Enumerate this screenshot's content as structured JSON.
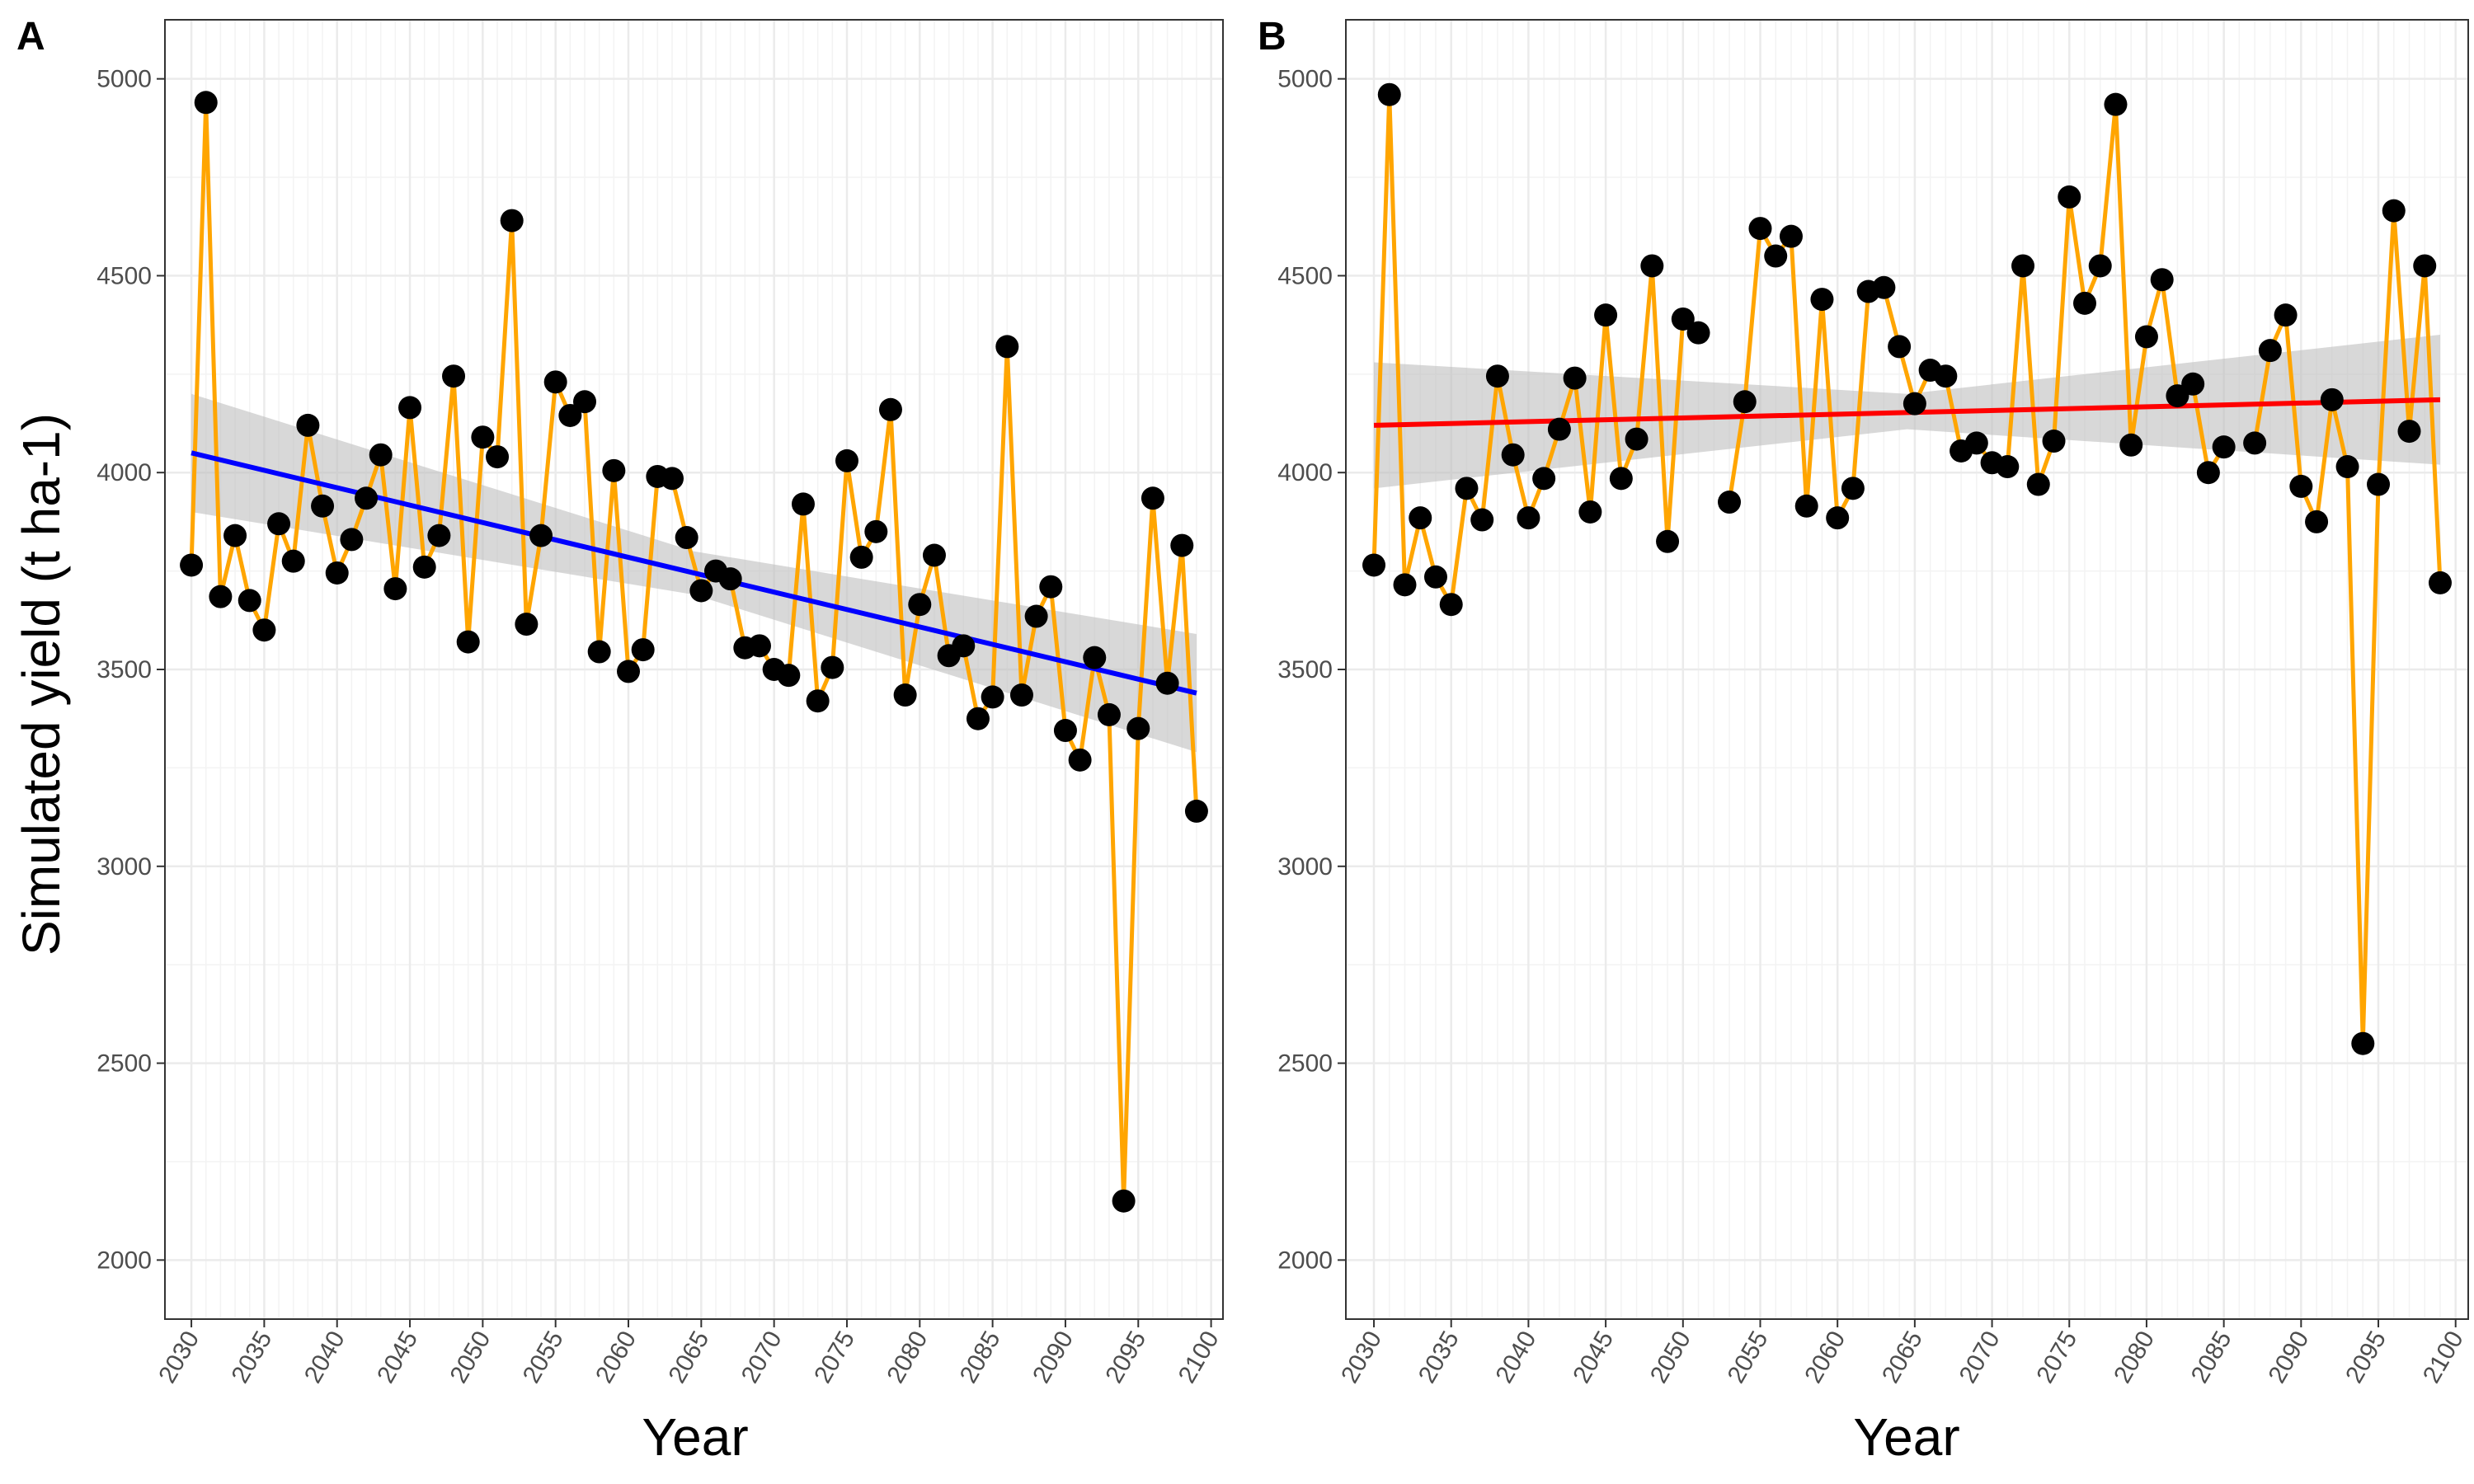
{
  "colors": {
    "series_line": "#FFA500",
    "points": "#000000",
    "trend_A": "#0000FF",
    "trend_B": "#FF0000",
    "ribbon": "#BEBEBE",
    "grid_major": "#EBEBEB",
    "grid_minor": "#F3F3F3",
    "panel_border": "#333333"
  },
  "shared": {
    "ylabel": "Simulated yield (t ha-1)",
    "xlabel": "Year"
  },
  "chart_data": [
    {
      "type": "line",
      "panel_label": "A",
      "xlabel": "Year",
      "ylabel": "Simulated yield (t ha-1)",
      "xlim": [
        2030,
        2099
      ],
      "ylim": [
        1850,
        5150
      ],
      "x_ticks": [
        2030,
        2035,
        2040,
        2045,
        2050,
        2055,
        2060,
        2065,
        2070,
        2075,
        2080,
        2085,
        2090,
        2095,
        2100
      ],
      "y_ticks": [
        2000,
        2500,
        3000,
        3500,
        4000,
        4500,
        5000
      ],
      "grid": true,
      "x": [
        2030,
        2031,
        2032,
        2033,
        2034,
        2035,
        2036,
        2037,
        2038,
        2039,
        2040,
        2041,
        2042,
        2043,
        2044,
        2045,
        2046,
        2047,
        2048,
        2049,
        2050,
        2051,
        2052,
        2053,
        2054,
        2055,
        2056,
        2057,
        2058,
        2059,
        2060,
        2061,
        2062,
        2063,
        2064,
        2065,
        2066,
        2067,
        2068,
        2069,
        2070,
        2071,
        2072,
        2073,
        2074,
        2075,
        2076,
        2077,
        2078,
        2079,
        2080,
        2081,
        2082,
        2083,
        2084,
        2085,
        2086,
        2087,
        2088,
        2089,
        2090,
        2091,
        2092,
        2093,
        2094,
        2095,
        2096,
        2097,
        2098,
        2099
      ],
      "y": [
        3765,
        4940,
        3685,
        3840,
        3675,
        3600,
        3870,
        3775,
        4120,
        3915,
        3745,
        3830,
        3935,
        4045,
        3705,
        4165,
        3760,
        3840,
        4245,
        3570,
        4090,
        4040,
        4640,
        3615,
        3840,
        4230,
        4145,
        4180,
        3545,
        4005,
        3495,
        3550,
        3990,
        3985,
        3835,
        3700,
        3750,
        3730,
        3555,
        3560,
        3500,
        3485,
        3920,
        3420,
        3505,
        4030,
        3785,
        3850,
        4160,
        3435,
        3665,
        3790,
        3535,
        3560,
        3375,
        3430,
        4320,
        3435,
        3635,
        3710,
        3345,
        3270,
        3530,
        3385,
        2150,
        3350,
        3935,
        3465,
        3815,
        3140
      ],
      "trend": {
        "method": "linear",
        "y_start": 4050,
        "y_end": 3440,
        "ci_start": [
          3900,
          4200
        ],
        "ci_end": [
          3290,
          3590
        ],
        "ci_mid": [
          3690,
          3800
        ]
      }
    },
    {
      "type": "line",
      "panel_label": "B",
      "xlabel": "Year",
      "ylabel": "",
      "xlim": [
        2030,
        2099
      ],
      "ylim": [
        1850,
        5150
      ],
      "x_ticks": [
        2030,
        2035,
        2040,
        2045,
        2050,
        2055,
        2060,
        2065,
        2070,
        2075,
        2080,
        2085,
        2090,
        2095,
        2100
      ],
      "y_ticks": [
        2000,
        2500,
        3000,
        3500,
        4000,
        4500,
        5000
      ],
      "grid": true,
      "x": [
        2030,
        2031,
        2032,
        2033,
        2034,
        2035,
        2036,
        2037,
        2038,
        2039,
        2040,
        2041,
        2042,
        2043,
        2044,
        2045,
        2046,
        2047,
        2048,
        2049,
        2050,
        2051,
        2052,
        2053,
        2054,
        2055,
        2056,
        2057,
        2058,
        2059,
        2060,
        2061,
        2062,
        2063,
        2064,
        2065,
        2066,
        2067,
        2068,
        2069,
        2070,
        2071,
        2072,
        2073,
        2074,
        2075,
        2076,
        2077,
        2078,
        2079,
        2080,
        2081,
        2082,
        2083,
        2084,
        2085,
        2086,
        2087,
        2088,
        2089,
        2090,
        2091,
        2092,
        2093,
        2094,
        2095,
        2096,
        2097,
        2098,
        2099
      ],
      "y": [
        3765,
        4960,
        3715,
        3885,
        3735,
        3665,
        3960,
        3880,
        4245,
        4045,
        3885,
        3985,
        4110,
        4240,
        3900,
        4400,
        3985,
        4085,
        4525,
        3825,
        4390,
        4355,
        null,
        3925,
        4180,
        4620,
        4550,
        4600,
        3915,
        4440,
        3885,
        3960,
        4460,
        4470,
        4320,
        4175,
        4260,
        4245,
        4055,
        4075,
        4025,
        4015,
        4525,
        3970,
        4080,
        4700,
        4430,
        4525,
        4935,
        4070,
        4345,
        4490,
        4195,
        4225,
        4000,
        4065,
        null,
        4075,
        4310,
        4400,
        3965,
        3875,
        4185,
        4015,
        2550,
        3970,
        4665,
        4105,
        4525,
        3720
      ],
      "trend": {
        "method": "linear",
        "y_start": 4120,
        "y_end": 4185,
        "ci_start": [
          3960,
          4280
        ],
        "ci_end": [
          4020,
          4350
        ],
        "ci_mid": [
          4110,
          4200
        ]
      }
    }
  ]
}
